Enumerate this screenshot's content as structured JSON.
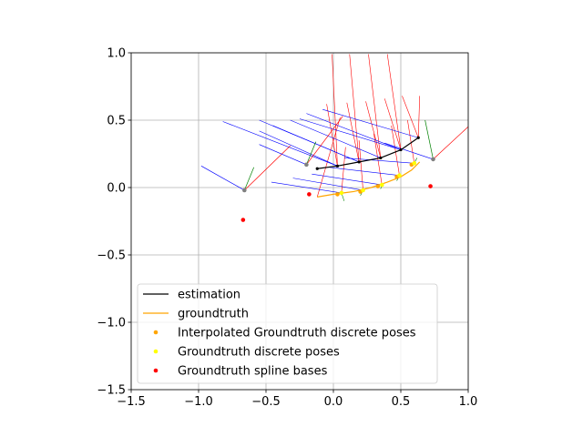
{
  "chart_data": {
    "type": "line",
    "title": "",
    "xlabel": "",
    "ylabel": "",
    "xlim": [
      -1.5,
      1.0
    ],
    "ylim": [
      -1.5,
      1.0
    ],
    "x_ticks": [
      -1.5,
      -1.0,
      -0.5,
      0.0,
      0.5,
      1.0
    ],
    "y_ticks": [
      -1.5,
      -1.0,
      -0.5,
      0.0,
      0.5,
      1.0
    ],
    "x_tick_labels": [
      "−1.5",
      "−1.0",
      "−0.5",
      "0.0",
      "0.5",
      "1.0"
    ],
    "y_tick_labels": [
      "−1.5",
      "−1.0",
      "−0.5",
      "0.0",
      "0.5",
      "1.0"
    ],
    "grid": true,
    "legend_position": "lower-left",
    "legend": [
      {
        "label": "estimation",
        "kind": "line",
        "color": "#000000"
      },
      {
        "label": "groundtruth",
        "kind": "line",
        "color": "#ffa500"
      },
      {
        "label": "Interpolated Groundtruth discrete poses",
        "kind": "marker",
        "color": "#ffa500"
      },
      {
        "label": "Groundtruth discrete poses",
        "kind": "marker",
        "color": "#ffff00"
      },
      {
        "label": "Groundtruth spline bases",
        "kind": "marker",
        "color": "#ff0000"
      }
    ],
    "series": [
      {
        "name": "estimation",
        "kind": "line",
        "color": "#000000",
        "x": [
          -0.12,
          0.03,
          0.19,
          0.35,
          0.5,
          0.63
        ],
        "y": [
          0.14,
          0.16,
          0.19,
          0.22,
          0.28,
          0.37
        ]
      },
      {
        "name": "groundtruth",
        "kind": "line",
        "color": "#ffa500",
        "x": [
          -0.12,
          0.0,
          0.15,
          0.28,
          0.4,
          0.5,
          0.58,
          0.64
        ],
        "y": [
          -0.07,
          -0.05,
          -0.03,
          0.0,
          0.04,
          0.08,
          0.13,
          0.19
        ]
      },
      {
        "name": "Interpolated Groundtruth discrete poses",
        "kind": "scatter",
        "color": "#ffa500",
        "x": [
          0.03,
          0.2,
          0.33,
          0.47,
          0.58
        ],
        "y": [
          -0.05,
          -0.03,
          0.01,
          0.08,
          0.17
        ]
      },
      {
        "name": "Groundtruth discrete poses",
        "kind": "scatter",
        "color": "#ffff00",
        "x": [
          0.06,
          0.22,
          0.36,
          0.49,
          0.6
        ],
        "y": [
          -0.04,
          -0.02,
          0.02,
          0.09,
          0.18
        ]
      },
      {
        "name": "Groundtruth spline bases",
        "kind": "scatter",
        "color": "#ff0000",
        "x": [
          -0.67,
          -0.18,
          0.72
        ],
        "y": [
          -0.24,
          -0.05,
          0.01
        ]
      },
      {
        "name": "",
        "kind": "scatter",
        "color": "#808080",
        "x": [
          -0.66,
          -0.2,
          0.74
        ],
        "y": [
          -0.02,
          0.17,
          0.21
        ]
      }
    ],
    "pose_axes": [
      {
        "x": -0.66,
        "y": -0.02,
        "x_end": [
          -0.32,
          0.31
        ],
        "y_end": [
          -0.59,
          0.15
        ],
        "z_end": [
          -0.98,
          0.16
        ]
      },
      {
        "x": -0.2,
        "y": 0.17,
        "x_end": [
          0.07,
          0.53
        ],
        "y_end": [
          -0.13,
          0.34
        ],
        "z_end": [
          -0.55,
          0.32
        ]
      },
      {
        "x": 0.74,
        "y": 0.21,
        "x_end": [
          1.02,
          0.47
        ],
        "y_end": [
          0.68,
          0.5
        ],
        "z_end": [
          0.38,
          0.33
        ]
      }
    ],
    "frame_rays": {
      "red": [
        [
          [
            0.03,
            0.16
          ],
          [
            -0.05,
            0.62
          ]
        ],
        [
          [
            0.19,
            0.19
          ],
          [
            0.1,
            0.63
          ]
        ],
        [
          [
            0.35,
            0.22
          ],
          [
            0.24,
            0.64
          ]
        ],
        [
          [
            0.5,
            0.28
          ],
          [
            0.38,
            0.66
          ]
        ],
        [
          [
            0.63,
            0.37
          ],
          [
            0.51,
            0.68
          ]
        ],
        [
          [
            0.03,
            0.16
          ],
          [
            -0.01,
            0.99
          ]
        ],
        [
          [
            0.19,
            0.19
          ],
          [
            0.12,
            0.99
          ]
        ],
        [
          [
            0.35,
            0.22
          ],
          [
            0.26,
            0.99
          ]
        ],
        [
          [
            0.5,
            0.28
          ],
          [
            0.4,
            0.99
          ]
        ],
        [
          [
            0.63,
            0.37
          ],
          [
            0.64,
            0.68
          ]
        ],
        [
          [
            0.06,
            -0.04
          ],
          [
            0.09,
            0.3
          ]
        ],
        [
          [
            0.22,
            -0.02
          ],
          [
            0.19,
            0.35
          ]
        ],
        [
          [
            0.36,
            0.02
          ],
          [
            0.3,
            0.4
          ]
        ],
        [
          [
            0.49,
            0.09
          ],
          [
            0.43,
            0.46
          ]
        ],
        [
          [
            0.6,
            0.18
          ],
          [
            0.55,
            0.5
          ]
        ],
        [
          [
            -0.12,
            -0.07
          ],
          [
            0.05,
            0.52
          ]
        ]
      ],
      "blue": [
        [
          [
            0.03,
            0.16
          ],
          [
            -0.55,
            0.42
          ]
        ],
        [
          [
            0.19,
            0.19
          ],
          [
            -0.45,
            0.46
          ]
        ],
        [
          [
            0.35,
            0.22
          ],
          [
            -0.32,
            0.5
          ]
        ],
        [
          [
            0.5,
            0.28
          ],
          [
            -0.2,
            0.55
          ]
        ],
        [
          [
            0.63,
            0.37
          ],
          [
            -0.08,
            0.58
          ]
        ],
        [
          [
            0.03,
            0.16
          ],
          [
            -0.82,
            0.49
          ]
        ],
        [
          [
            0.19,
            0.19
          ],
          [
            -0.55,
            0.5
          ]
        ],
        [
          [
            0.5,
            0.28
          ],
          [
            -0.25,
            0.51
          ]
        ],
        [
          [
            0.06,
            -0.04
          ],
          [
            -0.46,
            0.04
          ]
        ],
        [
          [
            0.22,
            -0.02
          ],
          [
            -0.3,
            0.07
          ]
        ],
        [
          [
            0.36,
            0.02
          ],
          [
            -0.16,
            0.1
          ]
        ],
        [
          [
            0.49,
            0.09
          ],
          [
            -0.03,
            0.15
          ]
        ],
        [
          [
            0.6,
            0.18
          ],
          [
            0.08,
            0.22
          ]
        ]
      ],
      "green": [
        [
          [
            0.06,
            -0.04
          ],
          [
            0.08,
            -0.1
          ]
        ],
        [
          [
            0.22,
            -0.02
          ],
          [
            0.2,
            -0.06
          ]
        ],
        [
          [
            0.36,
            0.02
          ],
          [
            0.35,
            -0.01
          ]
        ],
        [
          [
            0.49,
            0.09
          ],
          [
            0.47,
            0.05
          ]
        ],
        [
          [
            0.6,
            0.18
          ],
          [
            0.62,
            0.22
          ]
        ]
      ]
    }
  }
}
